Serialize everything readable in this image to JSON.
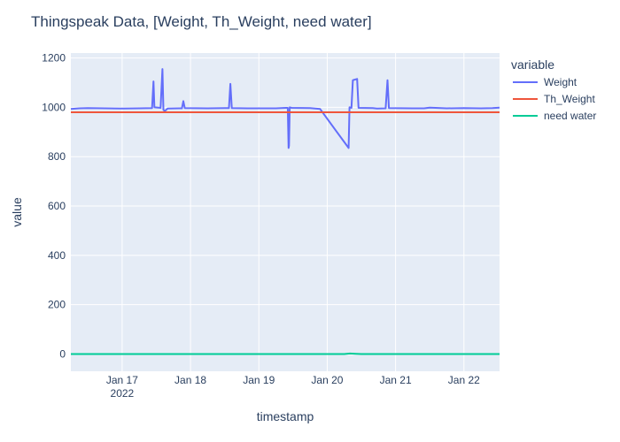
{
  "chart_data": {
    "type": "line",
    "title": "Thingspeak Data, [Weight, Th_Weight, need water]",
    "xlabel": "timestamp",
    "ylabel": "value",
    "xlim": [
      "2022-01-16T06:00",
      "2022-01-22T12:30"
    ],
    "ylim": [
      -70,
      1220
    ],
    "y_ticks": [
      0,
      200,
      400,
      600,
      800,
      1000,
      1200
    ],
    "x_ticks": [
      {
        "date": "2022-01-17",
        "label": "Jan 17",
        "sublabel": "2022"
      },
      {
        "date": "2022-01-18",
        "label": "Jan 18",
        "sublabel": ""
      },
      {
        "date": "2022-01-19",
        "label": "Jan 19",
        "sublabel": ""
      },
      {
        "date": "2022-01-20",
        "label": "Jan 20",
        "sublabel": ""
      },
      {
        "date": "2022-01-21",
        "label": "Jan 21",
        "sublabel": ""
      },
      {
        "date": "2022-01-22",
        "label": "Jan 22",
        "sublabel": ""
      }
    ],
    "grid": true,
    "legend": {
      "title": "variable",
      "placement": "right"
    },
    "series": [
      {
        "name": "Weight",
        "color": "#636efa",
        "points": [
          [
            "2022-01-16T06:00",
            993
          ],
          [
            "2022-01-16T09:00",
            996
          ],
          [
            "2022-01-16T12:00",
            997
          ],
          [
            "2022-01-16T18:00",
            996
          ],
          [
            "2022-01-17T00:00",
            995
          ],
          [
            "2022-01-17T06:00",
            996
          ],
          [
            "2022-01-17T10:30",
            997
          ],
          [
            "2022-01-17T11:00",
            1105
          ],
          [
            "2022-01-17T11:20",
            1000
          ],
          [
            "2022-01-17T13:30",
            998
          ],
          [
            "2022-01-17T14:10",
            1155
          ],
          [
            "2022-01-17T14:30",
            990
          ],
          [
            "2022-01-17T15:00",
            985
          ],
          [
            "2022-01-17T16:00",
            995
          ],
          [
            "2022-01-17T20:00",
            996
          ],
          [
            "2022-01-17T21:00",
            996
          ],
          [
            "2022-01-17T21:30",
            1025
          ],
          [
            "2022-01-17T22:00",
            997
          ],
          [
            "2022-01-18T06:00",
            996
          ],
          [
            "2022-01-18T12:00",
            997
          ],
          [
            "2022-01-18T13:30",
            997
          ],
          [
            "2022-01-18T14:00",
            1095
          ],
          [
            "2022-01-18T14:30",
            997
          ],
          [
            "2022-01-18T20:00",
            996
          ],
          [
            "2022-01-19T06:00",
            996
          ],
          [
            "2022-01-19T09:30",
            998
          ],
          [
            "2022-01-19T10:10",
            998
          ],
          [
            "2022-01-19T10:25",
            835
          ],
          [
            "2022-01-19T10:35",
            845
          ],
          [
            "2022-01-19T10:50",
            1000
          ],
          [
            "2022-01-19T11:30",
            998
          ],
          [
            "2022-01-19T18:00",
            997
          ],
          [
            "2022-01-19T21:30",
            993
          ],
          [
            "2022-01-20T07:30",
            835
          ],
          [
            "2022-01-20T07:50",
            1000
          ],
          [
            "2022-01-20T08:30",
            998
          ],
          [
            "2022-01-20T09:00",
            1110
          ],
          [
            "2022-01-20T10:30",
            1115
          ],
          [
            "2022-01-20T11:00",
            998
          ],
          [
            "2022-01-20T16:00",
            997
          ],
          [
            "2022-01-20T17:30",
            995
          ],
          [
            "2022-01-20T20:30",
            996
          ],
          [
            "2022-01-20T21:10",
            1110
          ],
          [
            "2022-01-20T21:40",
            997
          ],
          [
            "2022-01-21T06:00",
            996
          ],
          [
            "2022-01-21T10:00",
            996
          ],
          [
            "2022-01-21T12:00",
            999
          ],
          [
            "2022-01-21T18:00",
            996
          ],
          [
            "2022-01-22T00:00",
            997
          ],
          [
            "2022-01-22T06:00",
            996
          ],
          [
            "2022-01-22T10:00",
            997
          ],
          [
            "2022-01-22T12:30",
            999
          ]
        ]
      },
      {
        "name": "Th_Weight",
        "color": "#ef553b",
        "points": [
          [
            "2022-01-16T06:00",
            980
          ],
          [
            "2022-01-22T12:30",
            980
          ]
        ]
      },
      {
        "name": "need water",
        "color": "#00cc96",
        "points": [
          [
            "2022-01-16T06:00",
            0
          ],
          [
            "2022-01-20T06:00",
            0
          ],
          [
            "2022-01-20T08:00",
            2
          ],
          [
            "2022-01-20T10:00",
            1
          ],
          [
            "2022-01-20T12:00",
            0
          ],
          [
            "2022-01-22T12:30",
            0
          ]
        ]
      }
    ]
  }
}
